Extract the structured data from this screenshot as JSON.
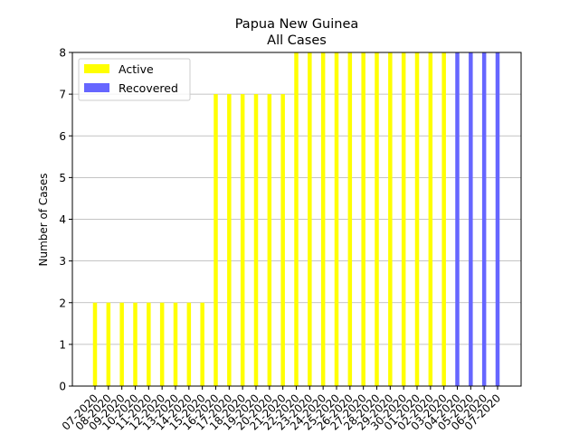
{
  "chart_data": {
    "type": "bar",
    "title": "Papua New Guinea",
    "subtitle": "All Cases",
    "xlabel": "",
    "ylabel": "Number of Cases",
    "ylim": [
      0,
      8
    ],
    "yticks": [
      0,
      1,
      2,
      3,
      4,
      5,
      6,
      7,
      8
    ],
    "grid": "horizontal",
    "legend_position": "top-left",
    "categories": [
      "07-2020",
      "08-2020",
      "09-2020",
      "10-2020",
      "11-2020",
      "12-2020",
      "13-2020",
      "14-2020",
      "15-2020",
      "16-2020",
      "17-2020",
      "18-2020",
      "19-2020",
      "20-2020",
      "21-2020",
      "22-2020",
      "23-2020",
      "24-2020",
      "25-2020",
      "26-2020",
      "27-2020",
      "28-2020",
      "29-2020",
      "30-2020",
      "01-2020",
      "02-2020",
      "03-2020",
      "04-2020",
      "05-2020",
      "06-2020",
      "07-2020"
    ],
    "series": [
      {
        "name": "Active",
        "color": "#ffff00",
        "values": [
          2,
          2,
          2,
          2,
          2,
          2,
          2,
          2,
          2,
          7,
          7,
          7,
          7,
          7,
          7,
          8,
          8,
          8,
          8,
          8,
          8,
          8,
          8,
          8,
          8,
          8,
          8,
          0,
          0,
          0,
          0
        ]
      },
      {
        "name": "Recovered",
        "color": "#6666ff",
        "values": [
          0,
          0,
          0,
          0,
          0,
          0,
          0,
          0,
          0,
          0,
          0,
          0,
          0,
          0,
          0,
          0,
          0,
          0,
          0,
          0,
          0,
          0,
          0,
          0,
          0,
          0,
          0,
          8,
          8,
          8,
          8
        ]
      }
    ]
  }
}
